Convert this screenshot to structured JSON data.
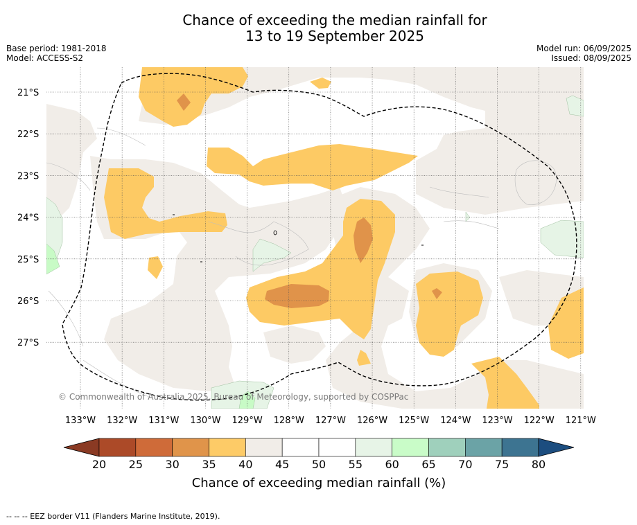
{
  "title": {
    "line1": "Chance of exceeding the median rainfall for",
    "line2": "13 to 19 September 2025"
  },
  "meta_left": {
    "base_period": "Base period: 1981-2018",
    "model": "Model: ACCESS-S2"
  },
  "meta_right": {
    "model_run": "Model run: 06/09/2025",
    "issued": "Issued: 08/09/2025"
  },
  "map": {
    "copyright": "© Commonwealth of Australia 2025, Bureau of Meteorology, supported by COSPPac",
    "lat_labels": [
      "21°S",
      "22°S",
      "23°S",
      "24°S",
      "25°S",
      "26°S",
      "27°S"
    ],
    "lon_labels": [
      "133°W",
      "132°W",
      "131°W",
      "130°W",
      "129°W",
      "128°W",
      "127°W",
      "126°W",
      "125°W",
      "124°W",
      "123°W",
      "122°W",
      "121°W"
    ],
    "fill_colors": {
      "c20_25": "#b5532a",
      "c30_35": "#e0934a",
      "c35_40": "#fdca64",
      "c40_45": "#f1ede8",
      "c55_60": "#e6f4e6",
      "c60_65": "#c8fbc6"
    }
  },
  "colorbar": {
    "ticks": [
      "20",
      "25",
      "30",
      "35",
      "40",
      "45",
      "50",
      "55",
      "60",
      "65",
      "70",
      "75",
      "80"
    ],
    "colors": [
      "#ac4a28",
      "#cf6b39",
      "#e0944a",
      "#fdcb67",
      "#f1ede8",
      "#ffffff",
      "#ffffff",
      "#e7f4e7",
      "#c9fcc8",
      "#9fd0bc",
      "#6ba3a6",
      "#3d7491"
    ],
    "under_color": "#8a3a23",
    "over_color": "#1c4d7f",
    "label": "Chance of exceeding median rainfall (%)"
  },
  "footer": "--  --  -- EEZ border V11 (Flanders Marine Institute, 2019)."
}
